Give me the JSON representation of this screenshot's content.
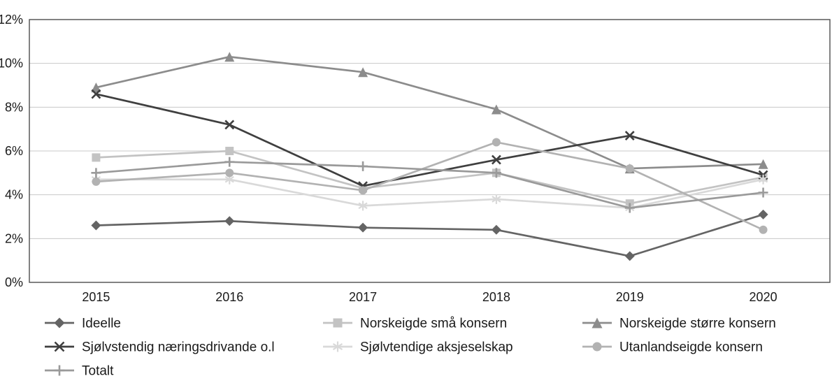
{
  "chart_data": {
    "type": "line",
    "title": "",
    "xlabel": "",
    "ylabel": "",
    "x_categories": [
      "2015",
      "2016",
      "2017",
      "2018",
      "2019",
      "2020"
    ],
    "y_ticks": [
      "0%",
      "2%",
      "4%",
      "6%",
      "8%",
      "10%",
      "12%"
    ],
    "ylim": [
      0,
      12
    ],
    "y_tick_step": 2,
    "grid": true,
    "legend_position": "bottom",
    "plot_border_color": "#4d4d4d",
    "gridline_color": "#c8c8c8",
    "series": [
      {
        "name": "Ideelle",
        "marker": "diamond",
        "color": "#646464",
        "values": [
          2.6,
          2.8,
          2.5,
          2.4,
          1.2,
          3.1
        ]
      },
      {
        "name": "Norskeigde små konsern",
        "marker": "square",
        "color": "#c3c3c3",
        "values": [
          5.7,
          6.0,
          4.3,
          5.0,
          3.6,
          4.8
        ]
      },
      {
        "name": "Norskeigde større konsern",
        "marker": "triangle",
        "color": "#8c8c8c",
        "values": [
          8.9,
          10.3,
          9.6,
          7.9,
          5.2,
          5.4
        ]
      },
      {
        "name": "Sjølvstendig næringsdrivande o.l",
        "marker": "x",
        "color": "#3f3f3f",
        "values": [
          8.6,
          7.2,
          4.4,
          5.6,
          6.7,
          4.9
        ]
      },
      {
        "name": "Sjølvtendige aksjeselskap",
        "marker": "asterisk",
        "color": "#d9d9d9",
        "values": [
          4.7,
          4.7,
          3.5,
          3.8,
          3.4,
          4.7
        ]
      },
      {
        "name": "Utanlandseigde konsern",
        "marker": "circle",
        "color": "#b2b2b2",
        "values": [
          4.6,
          5.0,
          4.2,
          6.4,
          5.2,
          2.4
        ]
      },
      {
        "name": "Totalt",
        "marker": "plus",
        "color": "#9a9a9a",
        "values": [
          5.0,
          5.5,
          5.3,
          5.0,
          3.4,
          4.1
        ]
      }
    ],
    "legend_rows": [
      [
        "Ideelle",
        "Norskeigde små konsern",
        "Norskeigde større konsern"
      ],
      [
        "Sjølvstendig næringsdrivande o.l",
        "Sjølvtendige aksjeselskap",
        "Utanlandseigde konsern"
      ],
      [
        "Totalt"
      ]
    ]
  }
}
